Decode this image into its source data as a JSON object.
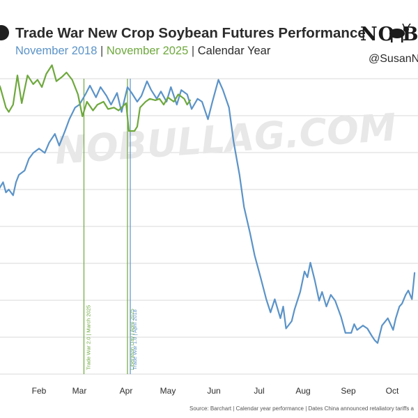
{
  "header": {
    "title": "Trade War New Crop Soybean Futures Performance",
    "subtitle_2018": "November 2018",
    "subtitle_sep1": " | ",
    "subtitle_2025": "November 2025",
    "subtitle_sep2": " | ",
    "subtitle_cal": "Calendar Year",
    "brand": "NO B",
    "handle": "@SusanN"
  },
  "watermark": "NOBULLAG.COM",
  "source": "Source: Barchart | Calendar year performance | Dates China announced retaliatory tariffs a",
  "colors": {
    "series_2018": "#5b93c8",
    "series_2025": "#6ea83d",
    "grid": "#d9d9d9",
    "text": "#2b2b2b"
  },
  "chart_data": {
    "type": "line",
    "title": "Trade War New Crop Soybean Futures Performance",
    "xlabel": "",
    "ylabel": "",
    "x_ticks": [
      "Feb",
      "Mar",
      "Apr",
      "May",
      "Jun",
      "Jul",
      "Aug",
      "Sep",
      "Oct"
    ],
    "grid": true,
    "series": [
      {
        "name": "November 2018",
        "color": "#5b93c8",
        "points": [
          [
            "01-02",
            0.5
          ],
          [
            "01-04",
            0.0
          ],
          [
            "01-07",
            0.5
          ],
          [
            "01-09",
            -0.2
          ],
          [
            "01-11",
            0.0
          ],
          [
            "01-14",
            -0.4
          ],
          [
            "01-16",
            0.5
          ],
          [
            "01-18",
            1.0
          ],
          [
            "01-22",
            1.3
          ],
          [
            "01-25",
            2.1
          ],
          [
            "01-28",
            2.5
          ],
          [
            "02-01",
            2.8
          ],
          [
            "02-05",
            2.5
          ],
          [
            "02-08",
            3.2
          ],
          [
            "02-12",
            3.8
          ],
          [
            "02-15",
            3.0
          ],
          [
            "02-19",
            4.0
          ],
          [
            "02-22",
            4.8
          ],
          [
            "02-26",
            5.6
          ],
          [
            "03-01",
            5.8
          ],
          [
            "03-05",
            6.5
          ],
          [
            "03-08",
            7.1
          ],
          [
            "03-12",
            6.3
          ],
          [
            "03-15",
            7.0
          ],
          [
            "03-19",
            6.4
          ],
          [
            "03-22",
            5.8
          ],
          [
            "03-26",
            6.6
          ],
          [
            "03-29",
            5.3
          ],
          [
            "04-02",
            7.0
          ],
          [
            "04-05",
            6.6
          ],
          [
            "04-09",
            6.0
          ],
          [
            "04-12",
            6.4
          ],
          [
            "04-16",
            7.4
          ],
          [
            "04-19",
            6.8
          ],
          [
            "04-23",
            6.2
          ],
          [
            "04-26",
            6.7
          ],
          [
            "04-30",
            6.0
          ],
          [
            "05-03",
            7.0
          ],
          [
            "05-07",
            5.8
          ],
          [
            "05-10",
            6.8
          ],
          [
            "05-14",
            6.5
          ],
          [
            "05-17",
            5.5
          ],
          [
            "05-21",
            6.2
          ],
          [
            "05-24",
            6.0
          ],
          [
            "05-28",
            4.8
          ],
          [
            "05-31",
            6.0
          ],
          [
            "06-04",
            7.5
          ],
          [
            "06-07",
            6.8
          ],
          [
            "06-11",
            5.6
          ],
          [
            "06-14",
            3.3
          ],
          [
            "06-18",
            1.0
          ],
          [
            "06-21",
            -1.2
          ],
          [
            "06-25",
            -3.0
          ],
          [
            "06-28",
            -4.5
          ],
          [
            "07-02",
            -6.0
          ],
          [
            "07-06",
            -7.5
          ],
          [
            "07-09",
            -8.4
          ],
          [
            "07-12",
            -7.5
          ],
          [
            "07-16",
            -8.8
          ],
          [
            "07-18",
            -8.0
          ],
          [
            "07-20",
            -9.5
          ],
          [
            "07-24",
            -9.0
          ],
          [
            "07-26",
            -8.2
          ],
          [
            "07-30",
            -7.0
          ],
          [
            "08-02",
            -5.6
          ],
          [
            "08-04",
            -6.0
          ],
          [
            "08-06",
            -5.0
          ],
          [
            "08-09",
            -6.2
          ],
          [
            "08-12",
            -7.6
          ],
          [
            "08-14",
            -7.0
          ],
          [
            "08-17",
            -8.0
          ],
          [
            "08-20",
            -7.2
          ],
          [
            "08-23",
            -7.6
          ],
          [
            "08-27",
            -8.7
          ],
          [
            "08-30",
            -9.8
          ],
          [
            "09-03",
            -9.8
          ],
          [
            "09-05",
            -9.2
          ],
          [
            "09-07",
            -9.6
          ],
          [
            "09-11",
            -9.3
          ],
          [
            "09-14",
            -9.5
          ],
          [
            "09-17",
            -10.0
          ],
          [
            "09-19",
            -10.3
          ],
          [
            "09-21",
            -10.5
          ],
          [
            "09-24",
            -9.3
          ],
          [
            "09-28",
            -8.8
          ],
          [
            "10-02",
            -9.6
          ],
          [
            "10-05",
            -8.8
          ],
          [
            "10-09",
            -8.0
          ],
          [
            "10-12",
            -7.8
          ],
          [
            "10-16",
            -7.2
          ],
          [
            "10-19",
            -6.9
          ],
          [
            "10-23",
            -7.5
          ],
          [
            "10-26",
            -5.7
          ]
        ]
      },
      {
        "name": "November 2025",
        "color": "#6ea83d",
        "points": [
          [
            "01-02",
            7.6
          ],
          [
            "01-05",
            7.0
          ],
          [
            "01-09",
            5.6
          ],
          [
            "01-11",
            5.3
          ],
          [
            "01-14",
            5.8
          ],
          [
            "01-17",
            7.8
          ],
          [
            "01-20",
            5.9
          ],
          [
            "01-24",
            7.8
          ],
          [
            "01-28",
            7.2
          ],
          [
            "01-31",
            7.5
          ],
          [
            "02-03",
            7.0
          ],
          [
            "02-06",
            7.9
          ],
          [
            "02-10",
            8.5
          ],
          [
            "02-13",
            7.4
          ],
          [
            "02-17",
            7.7
          ],
          [
            "02-20",
            8.0
          ],
          [
            "02-24",
            7.5
          ],
          [
            "02-28",
            6.5
          ],
          [
            "03-03",
            5.0
          ],
          [
            "03-06",
            6.0
          ],
          [
            "03-10",
            5.4
          ],
          [
            "03-13",
            5.8
          ],
          [
            "03-17",
            6.0
          ],
          [
            "03-20",
            5.5
          ],
          [
            "03-24",
            5.6
          ],
          [
            "03-27",
            5.4
          ],
          [
            "04-01",
            5.9
          ],
          [
            "04-03",
            4.0
          ],
          [
            "04-07",
            4.0
          ],
          [
            "04-09",
            4.3
          ],
          [
            "04-11",
            5.6
          ],
          [
            "04-15",
            6.0
          ],
          [
            "04-18",
            6.2
          ],
          [
            "04-22",
            6.1
          ],
          [
            "04-25",
            6.2
          ],
          [
            "04-28",
            5.8
          ],
          [
            "05-01",
            6.3
          ],
          [
            "05-05",
            6.0
          ],
          [
            "05-08",
            6.5
          ],
          [
            "05-12",
            6.2
          ],
          [
            "05-14",
            5.8
          ],
          [
            "05-16",
            6.1
          ]
        ]
      }
    ],
    "annotations": [
      {
        "label": "Trade War 2.0 | March 2025",
        "date": "03-04",
        "color": "#6ea83d"
      },
      {
        "label": "Liberation Day | April 2025",
        "date": "04-02",
        "color": "#6ea83d"
      },
      {
        "label": "Trade War 1.0 | April 2018",
        "date": "04-04",
        "color": "#5b93c8"
      }
    ]
  }
}
